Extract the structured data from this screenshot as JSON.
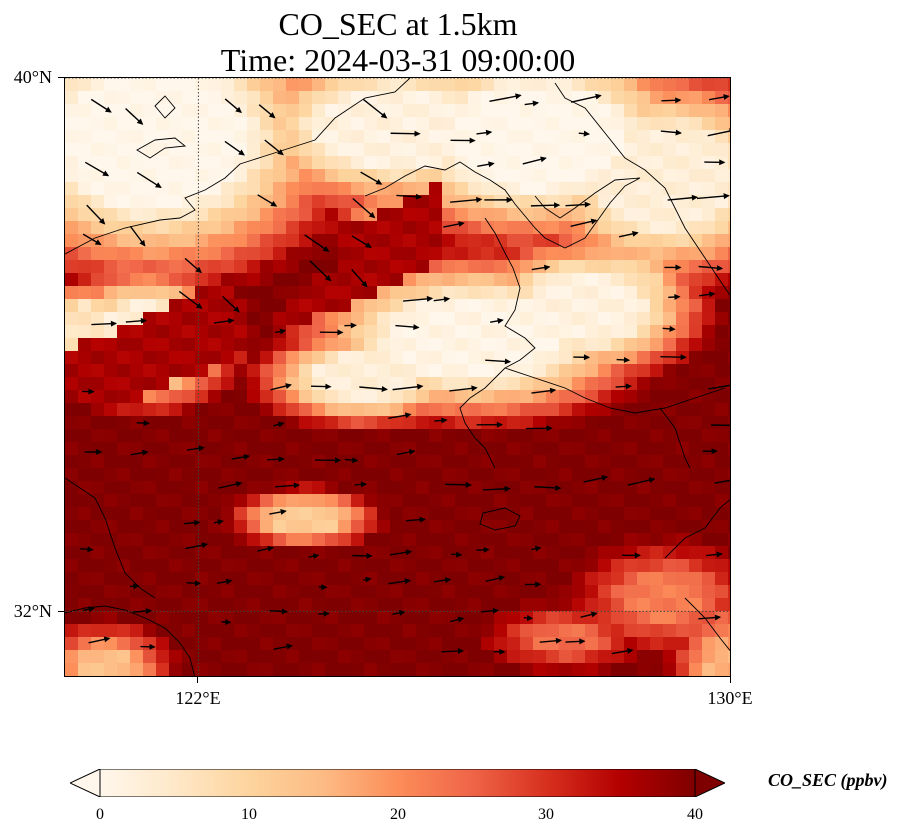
{
  "title": {
    "line1": "CO_SEC at 1.5km",
    "line2": "Time: 2024-03-31 09:00:00"
  },
  "axes": {
    "lat_labels": [
      "40°N",
      "32°N"
    ],
    "lon_labels": [
      "122°E",
      "130°E"
    ]
  },
  "colorbar": {
    "label": "CO_SEC (ppbv)",
    "ticks": [
      "0",
      "10",
      "20",
      "30",
      "40"
    ],
    "vmin": 0,
    "vmax": 40,
    "colormap": "OrRd",
    "colors": [
      "#fff7ec",
      "#fee8c8",
      "#fdd49e",
      "#fdbb84",
      "#fc8d59",
      "#ef6548",
      "#d7301f",
      "#b30000",
      "#7f0000"
    ]
  },
  "map": {
    "lon_range": [
      120,
      130
    ],
    "lat_range": [
      31,
      40
    ],
    "gridlines": {
      "lon": [
        122,
        130
      ],
      "lat": [
        32,
        40
      ]
    },
    "field_name": "CO_SEC",
    "level": "1.5km",
    "units": "ppbv",
    "high_color": "#7f0000",
    "low_color": "#fff7ec"
  }
}
